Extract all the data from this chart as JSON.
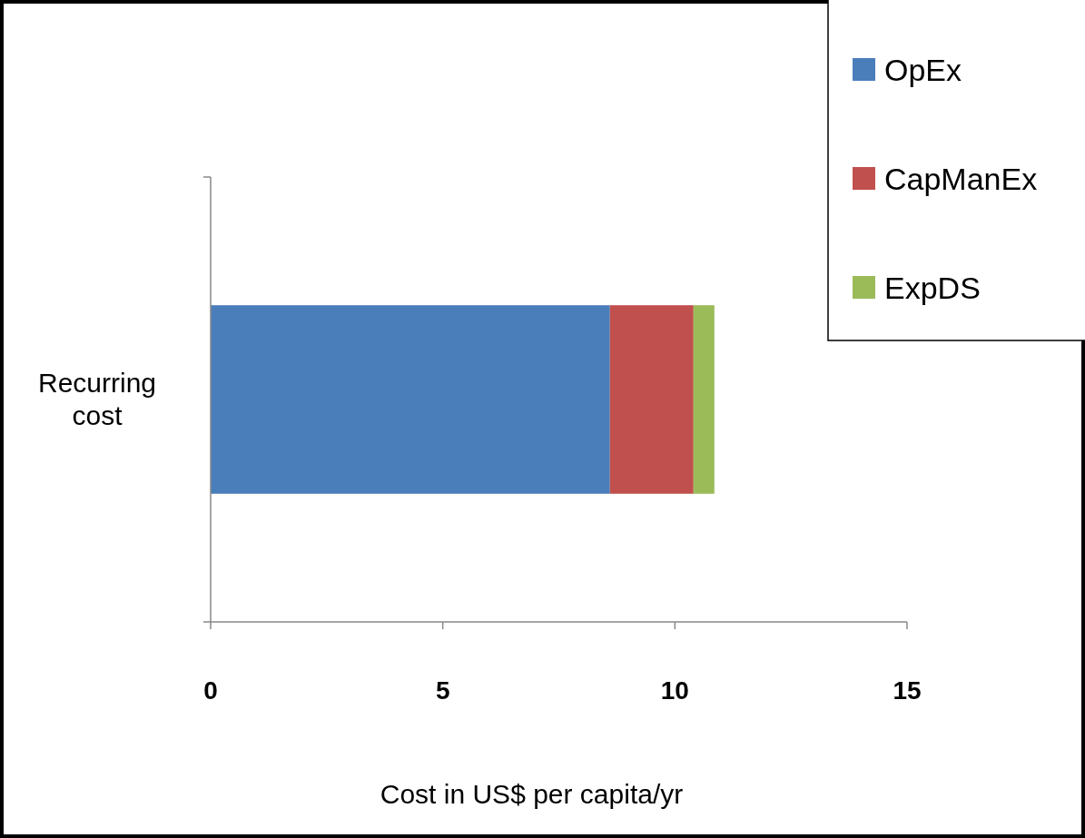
{
  "chart_data": {
    "type": "bar",
    "orientation": "horizontal",
    "stacked": true,
    "categories": [
      "Recurring cost"
    ],
    "series": [
      {
        "name": "OpEx",
        "color": "#4a7ebb",
        "values": [
          8.6
        ]
      },
      {
        "name": "CapManEx",
        "color": "#c0504d",
        "values": [
          1.8
        ]
      },
      {
        "name": "ExpDS",
        "color": "#9bbb59",
        "values": [
          0.45
        ]
      }
    ],
    "xlim": [
      0,
      15
    ],
    "xticks": [
      0,
      5,
      10,
      15
    ],
    "xlabel": "Cost in US$ per capita/yr",
    "legend": "top right",
    "grid": false
  }
}
